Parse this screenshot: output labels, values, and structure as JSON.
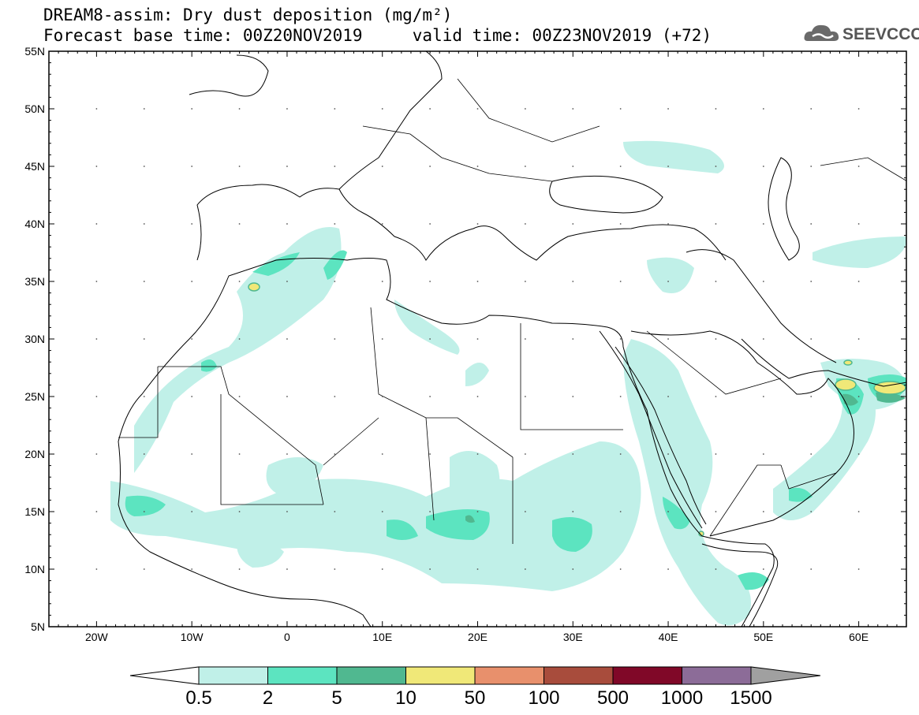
{
  "header": {
    "title": "DREAM8-assim: Dry dust deposition (mg/m²)",
    "subtitle": "Forecast base time: 00Z20NOV2019     valid time: 00Z23NOV2019 (+72)"
  },
  "logo": {
    "text": "SEEVCCC",
    "icon": "cloud-icon"
  },
  "map": {
    "lon_range": [
      -25,
      65
    ],
    "lat_range": [
      5,
      55
    ],
    "lat_labels": [
      "55N",
      "50N",
      "45N",
      "40N",
      "35N",
      "30N",
      "25N",
      "20N",
      "15N",
      "10N",
      "5N"
    ],
    "lon_labels": [
      "20W",
      "10W",
      "0",
      "10E",
      "20E",
      "30E",
      "40E",
      "50E",
      "60E"
    ]
  },
  "colorbar": {
    "labels": [
      "0.5",
      "2",
      "5",
      "10",
      "50",
      "100",
      "500",
      "1000",
      "1500"
    ],
    "colors": [
      "#c0f0e8",
      "#5ce4c0",
      "#50b890",
      "#f0e878",
      "#e8906c",
      "#a84c3c",
      "#800828",
      "#8c6c98",
      "#a0a0a0"
    ]
  },
  "dust_colors": {
    "light": "#c0f0e8",
    "medium": "#5ce4c0",
    "dark": "#50b890",
    "yellow": "#f0e878"
  }
}
